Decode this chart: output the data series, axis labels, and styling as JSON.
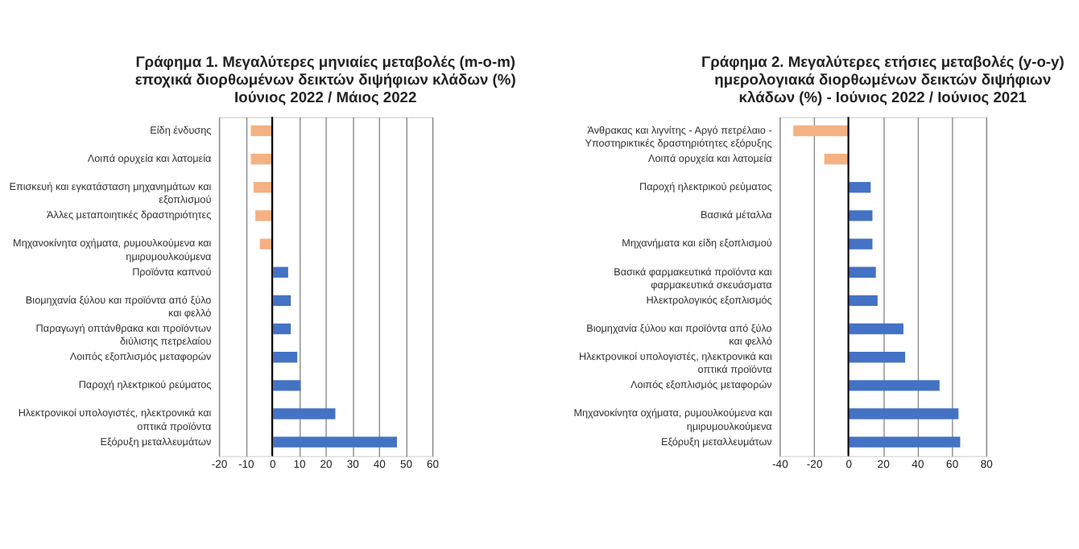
{
  "chart_data": [
    {
      "type": "bar",
      "orientation": "horizontal",
      "title": "Γράφημα 1. Μεγαλύτερες μηνιαίες μεταβολές (m-o-m)\nεποχικά διορθωμένων δεικτών διψήφιων κλάδων (%)\nΙούνιος 2022 / Μάιος 2022",
      "categories": [
        "Είδη ένδυσης",
        "Λοιπά ορυχεία και λατομεία",
        "Επισκευή και εγκατάσταση μηχανημάτων και εξοπλισμού",
        "Άλλες μεταποιητικές δραστηριότητες",
        "Μηχανοκίνητα οχήματα, ρυμουλκούμενα και ημιρυμουλκούμενα",
        "Προϊόντα καπνού",
        "Βιομηχανία ξύλου και προϊόντα από ξύλο και φελλό",
        "Παραγωγή οπτάνθρακα και προϊόντων διύλισης πετρελαίου",
        "Λοιπός εξοπλισμός μεταφορών",
        "Παροχή ηλεκτρικού ρεύματος",
        "Ηλεκτρονικοί υπολογιστές, ηλεκτρονικά και οπτικά προϊόντα",
        "Εξόρυξη μεταλλευμάτων"
      ],
      "values": [
        -8,
        -8,
        -7,
        -6.3,
        -4.6,
        6,
        7,
        7,
        9.4,
        10.7,
        23.7,
        46.8
      ],
      "colors": [
        "#f4b183",
        "#f4b183",
        "#f4b183",
        "#f4b183",
        "#f4b183",
        "#4472c4",
        "#4472c4",
        "#4472c4",
        "#4472c4",
        "#4472c4",
        "#4472c4",
        "#4472c4"
      ],
      "xlim": [
        -20,
        60
      ],
      "xticks": [
        -20,
        -10,
        0,
        10,
        20,
        30,
        40,
        50,
        60
      ],
      "grid": "x"
    },
    {
      "type": "bar",
      "orientation": "horizontal",
      "title": "Γράφημα 2. Μεγαλύτερες ετήσιες μεταβολές (y-o-y)\nημερολογιακά διορθωμένων δεικτών διψήφιων\nκλάδων (%) - Ιούνιος 2022 / Ιούνιος 2021",
      "categories": [
        "Άνθρακας και λιγνίτης - Αργό πετρέλαιο - Υποστηρικτικές δραστηριότητες εξόρυξης",
        "Λοιπά ορυχεία και λατομεία",
        "Παροχή ηλεκτρικού ρεύματος",
        "Βασικά μέταλλα",
        "Μηχανήματα και είδη εξοπλισμού",
        "Βασικά φαρμακευτικά προϊόντα και φαρμακευτικά σκευάσματα",
        "Ηλεκτρολογικός εξοπλισμός",
        "Βιομηχανία ξύλου και προϊόντα από ξύλο και φελλό",
        "Ηλεκτρονικοί υπολογιστές, ηλεκτρονικά και οπτικά προϊόντα",
        "Λοιπός εξοπλισμός μεταφορών",
        "Μηχανοκίνητα οχήματα, ρυμουλκούμενα και ημιρυμουλκούμενα",
        "Εξόρυξη μεταλλευμάτων"
      ],
      "values": [
        -32,
        -14,
        13,
        14,
        14,
        16,
        17,
        32,
        33,
        53,
        64,
        65
      ],
      "colors": [
        "#f4b183",
        "#f4b183",
        "#4472c4",
        "#4472c4",
        "#4472c4",
        "#4472c4",
        "#4472c4",
        "#4472c4",
        "#4472c4",
        "#4472c4",
        "#4472c4",
        "#4472c4"
      ],
      "xlim": [
        -40,
        80
      ],
      "xticks": [
        -40,
        -20,
        0,
        20,
        40,
        60,
        80
      ],
      "grid": "x"
    }
  ]
}
